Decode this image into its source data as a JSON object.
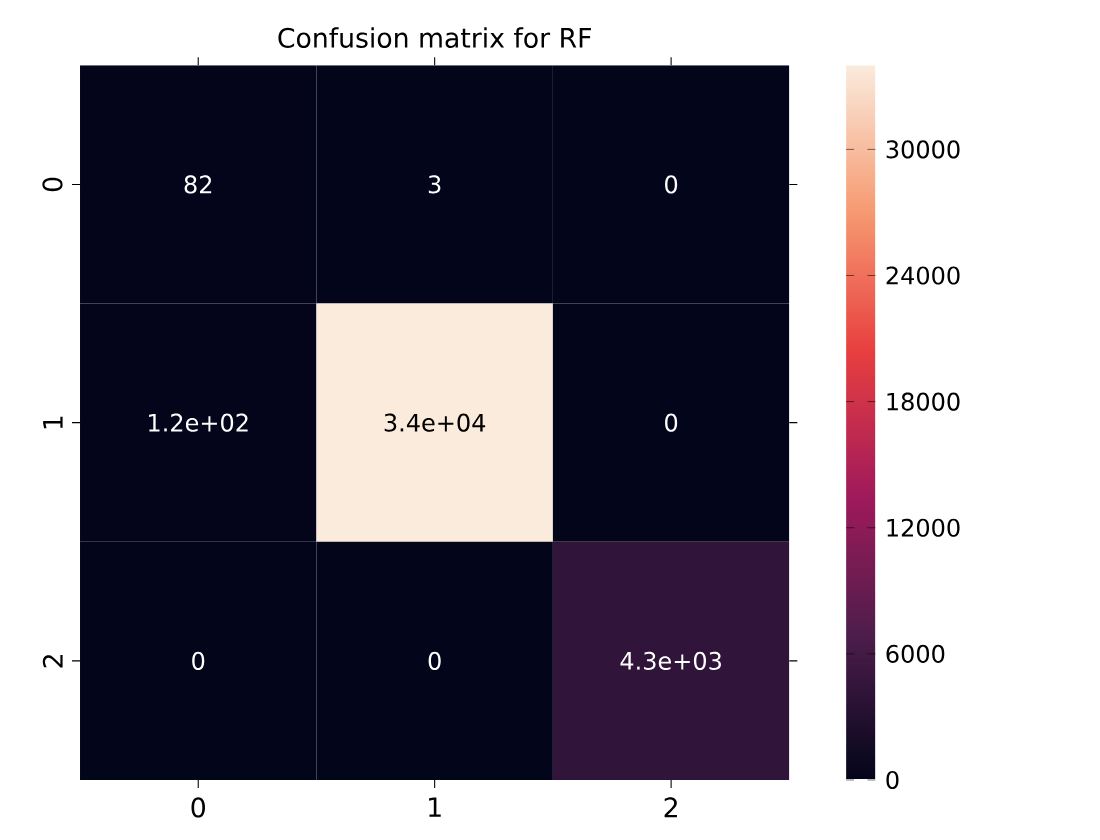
{
  "chart_data": {
    "type": "heatmap",
    "title": "Confusion matrix for RF",
    "categories": [
      "0",
      "1",
      "2"
    ],
    "y_categories": [
      "0",
      "1",
      "2"
    ],
    "cells": [
      [
        82,
        3,
        0
      ],
      [
        120,
        34000,
        0
      ],
      [
        0,
        0,
        4300
      ]
    ],
    "cell_labels": [
      [
        "82",
        "3",
        "0"
      ],
      [
        "1.2e+02",
        "3.4e+04",
        "0"
      ],
      [
        "0",
        "0",
        "4.3e+03"
      ]
    ],
    "clim": [
      0,
      34000
    ],
    "cticks": [
      0,
      6000,
      12000,
      18000,
      24000,
      30000
    ]
  }
}
